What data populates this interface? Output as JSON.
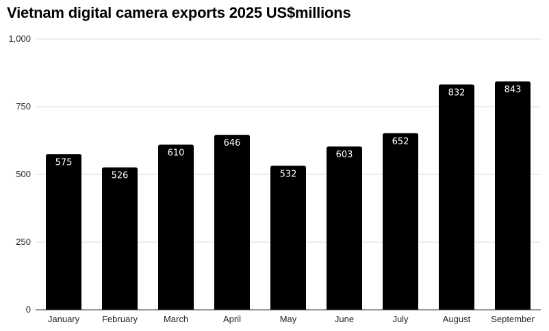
{
  "chart_data": {
    "type": "bar",
    "title": "Vietnam digital camera exports 2025 US$millions",
    "categories": [
      "January",
      "February",
      "March",
      "April",
      "May",
      "June",
      "July",
      "August",
      "September"
    ],
    "values": [
      575,
      526,
      610,
      646,
      532,
      603,
      652,
      832,
      843
    ],
    "data_labels": [
      "575",
      "526",
      "610",
      "646",
      "532",
      "603",
      "652",
      "832",
      "843"
    ],
    "ylim": [
      0,
      1000
    ],
    "y_ticks": [
      0,
      250,
      500,
      750,
      1000
    ],
    "y_tick_labels": [
      "0",
      "250",
      "500",
      "750",
      "1,000"
    ],
    "xlabel": "",
    "ylabel": "",
    "grid": true,
    "legend": "none",
    "bar_color": "#000000",
    "label_color": "#ffffff",
    "grid_color": "#d9d9d9"
  }
}
